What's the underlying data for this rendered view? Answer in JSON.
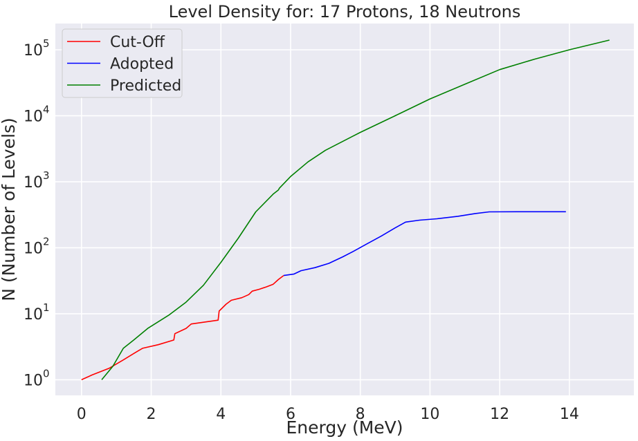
{
  "chart_data": {
    "type": "line",
    "title": "Level Density for: 17 Protons, 18 Neutrons",
    "xlabel": "Energy (MeV)",
    "ylabel": "N (Number of Levels)",
    "xlim": [
      -0.75,
      15.85
    ],
    "ylim": [
      0.58,
      250000
    ],
    "yscale": "log",
    "grid": true,
    "legend_position": "top-left",
    "background": "#eaeaf2",
    "x_ticks": [
      0,
      2,
      4,
      6,
      8,
      10,
      12,
      14
    ],
    "x_tick_labels": [
      "0",
      "2",
      "4",
      "6",
      "8",
      "10",
      "12",
      "14"
    ],
    "y_ticks": [
      1,
      10,
      100,
      1000,
      10000,
      100000
    ],
    "y_tick_labels": [
      {
        "base": "10",
        "exp": "0"
      },
      {
        "base": "10",
        "exp": "1"
      },
      {
        "base": "10",
        "exp": "2"
      },
      {
        "base": "10",
        "exp": "3"
      },
      {
        "base": "10",
        "exp": "4"
      },
      {
        "base": "10",
        "exp": "5"
      }
    ],
    "series": [
      {
        "name": "Cut-Off",
        "color": "#ff0000",
        "points": [
          [
            0,
            1
          ],
          [
            0.3,
            1.18
          ],
          [
            0.8,
            1.5
          ],
          [
            1.2,
            2
          ],
          [
            1.5,
            2.5
          ],
          [
            1.75,
            3
          ],
          [
            2.2,
            3.4
          ],
          [
            2.65,
            4
          ],
          [
            2.68,
            5
          ],
          [
            3.0,
            6
          ],
          [
            3.15,
            7
          ],
          [
            3.92,
            8
          ],
          [
            3.95,
            11
          ],
          [
            4.15,
            14
          ],
          [
            4.3,
            16
          ],
          [
            4.6,
            17.5
          ],
          [
            4.8,
            19.5
          ],
          [
            4.9,
            22
          ],
          [
            5.1,
            23.5
          ],
          [
            5.3,
            25.5
          ],
          [
            5.5,
            28
          ],
          [
            5.65,
            33
          ],
          [
            5.8,
            38
          ]
        ]
      },
      {
        "name": "Adopted",
        "color": "#0000ff",
        "points": [
          [
            5.8,
            38
          ],
          [
            6.1,
            40
          ],
          [
            6.3,
            45
          ],
          [
            6.7,
            50
          ],
          [
            7.1,
            58
          ],
          [
            7.5,
            73
          ],
          [
            7.8,
            88
          ],
          [
            8.2,
            115
          ],
          [
            8.6,
            150
          ],
          [
            9.0,
            200
          ],
          [
            9.3,
            245
          ],
          [
            9.7,
            262
          ],
          [
            10.2,
            275
          ],
          [
            10.8,
            300
          ],
          [
            11.3,
            330
          ],
          [
            11.7,
            350
          ],
          [
            12.5,
            352
          ],
          [
            13.9,
            352
          ]
        ]
      },
      {
        "name": "Predicted",
        "color": "#008000",
        "points": [
          [
            0.58,
            1
          ],
          [
            0.9,
            1.6
          ],
          [
            1.2,
            3
          ],
          [
            1.5,
            4
          ],
          [
            1.9,
            6
          ],
          [
            2.5,
            9.5
          ],
          [
            3.0,
            15
          ],
          [
            3.5,
            27
          ],
          [
            4.0,
            60
          ],
          [
            4.5,
            140
          ],
          [
            5.0,
            350
          ],
          [
            5.5,
            650
          ],
          [
            5.65,
            750
          ],
          [
            5.68,
            800
          ],
          [
            6.0,
            1200
          ],
          [
            6.5,
            2000
          ],
          [
            7.0,
            3000
          ],
          [
            8.0,
            5600
          ],
          [
            9.0,
            10000
          ],
          [
            10.0,
            18000
          ],
          [
            11.0,
            30000
          ],
          [
            12.0,
            50000
          ],
          [
            13.0,
            72000
          ],
          [
            14.0,
            100000
          ],
          [
            15.15,
            140000
          ]
        ]
      }
    ]
  }
}
